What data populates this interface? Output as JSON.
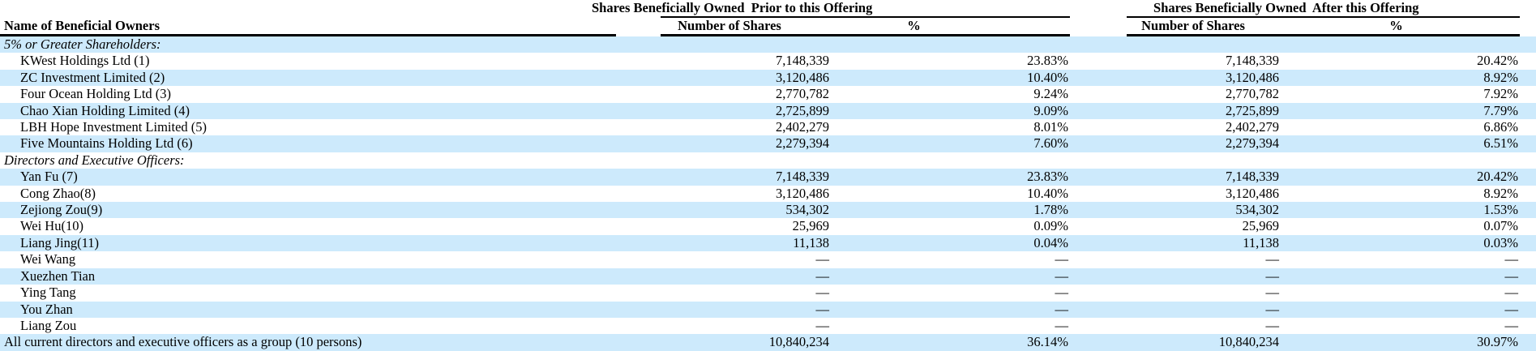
{
  "table": {
    "stripe_color": "#cdeafc",
    "col_groups": {
      "prior": "Shares Beneficially Owned  Prior to this Offering",
      "after": "Shares Beneficially Owned  After this Offering"
    },
    "headers": {
      "name": "Name of Beneficial Owners",
      "shares": "Number of Shares",
      "pct": "%"
    },
    "rows": [
      {
        "type": "section",
        "name": "5% or Greater Shareholders:",
        "prior_shares": "",
        "prior_pct": "",
        "after_shares": "",
        "after_pct": ""
      },
      {
        "type": "item",
        "name": "KWest Holdings Ltd (1)",
        "prior_shares": "7,148,339",
        "prior_pct": "23.83%",
        "after_shares": "7,148,339",
        "after_pct": "20.42%"
      },
      {
        "type": "item",
        "name": "ZC Investment Limited (2)",
        "prior_shares": "3,120,486",
        "prior_pct": "10.40%",
        "after_shares": "3,120,486",
        "after_pct": "8.92%"
      },
      {
        "type": "item",
        "name": "Four Ocean Holding Ltd (3)",
        "prior_shares": "2,770,782",
        "prior_pct": "9.24%",
        "after_shares": "2,770,782",
        "after_pct": "7.92%"
      },
      {
        "type": "item",
        "name": "Chao Xian Holding Limited (4)",
        "prior_shares": "2,725,899",
        "prior_pct": "9.09%",
        "after_shares": "2,725,899",
        "after_pct": "7.79%"
      },
      {
        "type": "item",
        "name": "LBH Hope Investment Limited (5)",
        "prior_shares": "2,402,279",
        "prior_pct": "8.01%",
        "after_shares": "2,402,279",
        "after_pct": "6.86%"
      },
      {
        "type": "item",
        "name": "Five Mountains Holding Ltd (6)",
        "prior_shares": "2,279,394",
        "prior_pct": "7.60%",
        "after_shares": "2,279,394",
        "after_pct": "6.51%"
      },
      {
        "type": "section",
        "name": "Directors and Executive Officers:",
        "prior_shares": "",
        "prior_pct": "",
        "after_shares": "",
        "after_pct": ""
      },
      {
        "type": "item",
        "name": "Yan Fu (7)",
        "prior_shares": "7,148,339",
        "prior_pct": "23.83%",
        "after_shares": "7,148,339",
        "after_pct": "20.42%"
      },
      {
        "type": "item",
        "name": "Cong Zhao(8)",
        "prior_shares": "3,120,486",
        "prior_pct": "10.40%",
        "after_shares": "3,120,486",
        "after_pct": "8.92%"
      },
      {
        "type": "item",
        "name": "Zejiong Zou(9)",
        "prior_shares": "534,302",
        "prior_pct": "1.78%",
        "after_shares": "534,302",
        "after_pct": "1.53%"
      },
      {
        "type": "item",
        "name": "Wei Hu(10)",
        "prior_shares": "25,969",
        "prior_pct": "0.09%",
        "after_shares": "25,969",
        "after_pct": "0.07%"
      },
      {
        "type": "item",
        "name": "Liang Jing(11)",
        "prior_shares": "11,138",
        "prior_pct": "0.04%",
        "after_shares": "11,138",
        "after_pct": "0.03%"
      },
      {
        "type": "item",
        "name": "Wei Wang",
        "prior_shares": "—",
        "prior_pct": "—",
        "after_shares": "—",
        "after_pct": "—"
      },
      {
        "type": "item",
        "name": "Xuezhen Tian",
        "prior_shares": "—",
        "prior_pct": "—",
        "after_shares": "—",
        "after_pct": "—"
      },
      {
        "type": "item",
        "name": "Ying Tang",
        "prior_shares": "—",
        "prior_pct": "—",
        "after_shares": "—",
        "after_pct": "—"
      },
      {
        "type": "item",
        "name": "You Zhan",
        "prior_shares": "—",
        "prior_pct": "—",
        "after_shares": "—",
        "after_pct": "—"
      },
      {
        "type": "item",
        "name": "Liang Zou",
        "prior_shares": "—",
        "prior_pct": "—",
        "after_shares": "—",
        "after_pct": "—"
      },
      {
        "type": "total",
        "name": "All current directors and executive officers as a group (10 persons)",
        "prior_shares": "10,840,234",
        "prior_pct": "36.14%",
        "after_shares": "10,840,234",
        "after_pct": "30.97%"
      }
    ]
  }
}
